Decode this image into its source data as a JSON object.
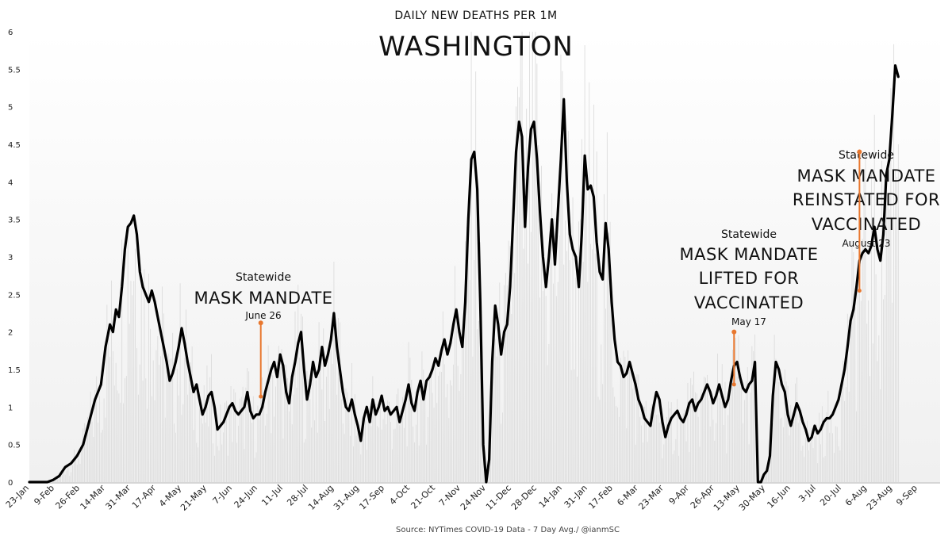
{
  "chart_data": {
    "type": "line",
    "subtitle": "DAILY NEW DEATHS PER 1M",
    "title": "WASHINGTON",
    "source": "Source: NYTimes COVID-19 Data - 7 Day Avg./ @ianmSC",
    "ylim": [
      0,
      6
    ],
    "y_ticks": [
      "0",
      "0.5",
      "1",
      "1.5",
      "2",
      "2.5",
      "3",
      "3.5",
      "4",
      "4.5",
      "5",
      "5.5",
      "6"
    ],
    "x_tick_labels": [
      "23-Jan",
      "9-Feb",
      "26-Feb",
      "14-Mar",
      "31-Mar",
      "17-Apr",
      "4-May",
      "21-May",
      "7-Jun",
      "24-Jun",
      "11-Jul",
      "28-Jul",
      "14-Aug",
      "31-Aug",
      "17-Sep",
      "4-Oct",
      "21-Oct",
      "7-Nov",
      "24-Nov",
      "11-Dec",
      "28-Dec",
      "14-Jan",
      "31-Jan",
      "17-Feb",
      "6-Mar",
      "23-Mar",
      "9-Apr",
      "26-Apr",
      "13-May",
      "30-May",
      "16-Jun",
      "3-Jul",
      "20-Jul",
      "6-Aug",
      "23-Aug",
      "9-Sep"
    ],
    "grid": false,
    "line_color": "#000000",
    "annotation_color": "#e8772e",
    "series": [
      {
        "values": [
          [
            0,
            0
          ],
          [
            8,
            0
          ],
          [
            12,
            0
          ],
          [
            16,
            0.03
          ],
          [
            20,
            0.08
          ],
          [
            24,
            0.2
          ],
          [
            28,
            0.25
          ],
          [
            32,
            0.35
          ],
          [
            36,
            0.5
          ],
          [
            40,
            0.8
          ],
          [
            44,
            1.1
          ],
          [
            48,
            1.3
          ],
          [
            51,
            1.8
          ],
          [
            54,
            2.1
          ],
          [
            56,
            2.0
          ],
          [
            58,
            2.3
          ],
          [
            60,
            2.2
          ],
          [
            62,
            2.6
          ],
          [
            64,
            3.1
          ],
          [
            66,
            3.4
          ],
          [
            68,
            3.45
          ],
          [
            70,
            3.55
          ],
          [
            72,
            3.3
          ],
          [
            74,
            2.8
          ],
          [
            76,
            2.6
          ],
          [
            78,
            2.5
          ],
          [
            80,
            2.4
          ],
          [
            82,
            2.55
          ],
          [
            84,
            2.4
          ],
          [
            86,
            2.2
          ],
          [
            88,
            2.0
          ],
          [
            90,
            1.8
          ],
          [
            92,
            1.6
          ],
          [
            94,
            1.35
          ],
          [
            96,
            1.45
          ],
          [
            98,
            1.6
          ],
          [
            100,
            1.8
          ],
          [
            102,
            2.05
          ],
          [
            104,
            1.85
          ],
          [
            106,
            1.6
          ],
          [
            108,
            1.4
          ],
          [
            110,
            1.2
          ],
          [
            112,
            1.3
          ],
          [
            114,
            1.1
          ],
          [
            116,
            0.9
          ],
          [
            118,
            1.0
          ],
          [
            120,
            1.15
          ],
          [
            122,
            1.2
          ],
          [
            124,
            1.0
          ],
          [
            126,
            0.7
          ],
          [
            128,
            0.75
          ],
          [
            130,
            0.8
          ],
          [
            132,
            0.9
          ],
          [
            134,
            1.0
          ],
          [
            136,
            1.05
          ],
          [
            138,
            0.95
          ],
          [
            140,
            0.9
          ],
          [
            142,
            0.95
          ],
          [
            144,
            1.0
          ],
          [
            146,
            1.2
          ],
          [
            148,
            0.95
          ],
          [
            150,
            0.85
          ],
          [
            152,
            0.9
          ],
          [
            154,
            0.9
          ],
          [
            156,
            1.0
          ],
          [
            158,
            1.2
          ],
          [
            160,
            1.35
          ],
          [
            162,
            1.5
          ],
          [
            164,
            1.6
          ],
          [
            166,
            1.4
          ],
          [
            168,
            1.7
          ],
          [
            170,
            1.55
          ],
          [
            172,
            1.2
          ],
          [
            174,
            1.05
          ],
          [
            176,
            1.4
          ],
          [
            178,
            1.6
          ],
          [
            180,
            1.85
          ],
          [
            182,
            2.0
          ],
          [
            184,
            1.5
          ],
          [
            186,
            1.1
          ],
          [
            188,
            1.3
          ],
          [
            190,
            1.6
          ],
          [
            192,
            1.4
          ],
          [
            194,
            1.5
          ],
          [
            196,
            1.8
          ],
          [
            198,
            1.55
          ],
          [
            200,
            1.7
          ],
          [
            202,
            1.9
          ],
          [
            204,
            2.25
          ],
          [
            206,
            1.8
          ],
          [
            208,
            1.5
          ],
          [
            210,
            1.2
          ],
          [
            212,
            1.0
          ],
          [
            214,
            0.95
          ],
          [
            216,
            1.1
          ],
          [
            218,
            0.9
          ],
          [
            220,
            0.75
          ],
          [
            222,
            0.55
          ],
          [
            224,
            0.85
          ],
          [
            226,
            1.0
          ],
          [
            228,
            0.8
          ],
          [
            230,
            1.1
          ],
          [
            232,
            0.9
          ],
          [
            234,
            1.0
          ],
          [
            236,
            1.15
          ],
          [
            238,
            0.95
          ],
          [
            240,
            1.0
          ],
          [
            242,
            0.9
          ],
          [
            244,
            0.95
          ],
          [
            246,
            1.0
          ],
          [
            248,
            0.8
          ],
          [
            250,
            0.95
          ],
          [
            252,
            1.1
          ],
          [
            254,
            1.3
          ],
          [
            256,
            1.05
          ],
          [
            258,
            0.95
          ],
          [
            260,
            1.2
          ],
          [
            262,
            1.35
          ],
          [
            264,
            1.1
          ],
          [
            266,
            1.35
          ],
          [
            268,
            1.4
          ],
          [
            270,
            1.5
          ],
          [
            272,
            1.65
          ],
          [
            274,
            1.55
          ],
          [
            276,
            1.75
          ],
          [
            278,
            1.9
          ],
          [
            280,
            1.7
          ],
          [
            282,
            1.85
          ],
          [
            284,
            2.1
          ],
          [
            286,
            2.3
          ],
          [
            288,
            2.0
          ],
          [
            290,
            1.8
          ],
          [
            292,
            2.4
          ],
          [
            294,
            3.5
          ],
          [
            296,
            4.3
          ],
          [
            298,
            4.4
          ],
          [
            300,
            3.9
          ],
          [
            302,
            2.4
          ],
          [
            304,
            0.5
          ],
          [
            306,
            0.0
          ],
          [
            308,
            0.3
          ],
          [
            310,
            1.6
          ],
          [
            312,
            2.35
          ],
          [
            314,
            2.1
          ],
          [
            316,
            1.7
          ],
          [
            318,
            2.0
          ],
          [
            320,
            2.1
          ],
          [
            322,
            2.6
          ],
          [
            324,
            3.5
          ],
          [
            326,
            4.4
          ],
          [
            328,
            4.8
          ],
          [
            330,
            4.6
          ],
          [
            332,
            3.4
          ],
          [
            334,
            4.2
          ],
          [
            336,
            4.7
          ],
          [
            338,
            4.8
          ],
          [
            340,
            4.3
          ],
          [
            342,
            3.6
          ],
          [
            344,
            3.0
          ],
          [
            346,
            2.6
          ],
          [
            348,
            3.0
          ],
          [
            350,
            3.5
          ],
          [
            352,
            2.9
          ],
          [
            354,
            3.6
          ],
          [
            356,
            4.3
          ],
          [
            358,
            5.1
          ],
          [
            360,
            4.0
          ],
          [
            362,
            3.3
          ],
          [
            364,
            3.1
          ],
          [
            366,
            3.0
          ],
          [
            368,
            2.6
          ],
          [
            370,
            3.3
          ],
          [
            372,
            4.35
          ],
          [
            374,
            3.9
          ],
          [
            376,
            3.95
          ],
          [
            378,
            3.8
          ],
          [
            380,
            3.2
          ],
          [
            382,
            2.8
          ],
          [
            384,
            2.7
          ],
          [
            386,
            3.45
          ],
          [
            388,
            3.1
          ],
          [
            390,
            2.4
          ],
          [
            392,
            1.9
          ],
          [
            394,
            1.6
          ],
          [
            396,
            1.55
          ],
          [
            398,
            1.4
          ],
          [
            400,
            1.45
          ],
          [
            402,
            1.6
          ],
          [
            404,
            1.45
          ],
          [
            406,
            1.3
          ],
          [
            408,
            1.1
          ],
          [
            410,
            1.0
          ],
          [
            412,
            0.85
          ],
          [
            414,
            0.8
          ],
          [
            416,
            0.75
          ],
          [
            418,
            1.0
          ],
          [
            420,
            1.2
          ],
          [
            422,
            1.1
          ],
          [
            424,
            0.8
          ],
          [
            426,
            0.6
          ],
          [
            428,
            0.75
          ],
          [
            430,
            0.85
          ],
          [
            432,
            0.9
          ],
          [
            434,
            0.95
          ],
          [
            436,
            0.85
          ],
          [
            438,
            0.8
          ],
          [
            440,
            0.9
          ],
          [
            442,
            1.05
          ],
          [
            444,
            1.1
          ],
          [
            446,
            0.95
          ],
          [
            448,
            1.05
          ],
          [
            450,
            1.1
          ],
          [
            452,
            1.2
          ],
          [
            454,
            1.3
          ],
          [
            456,
            1.2
          ],
          [
            458,
            1.05
          ],
          [
            460,
            1.15
          ],
          [
            462,
            1.3
          ],
          [
            464,
            1.15
          ],
          [
            466,
            1.0
          ],
          [
            468,
            1.1
          ],
          [
            470,
            1.35
          ],
          [
            472,
            1.55
          ],
          [
            474,
            1.6
          ],
          [
            476,
            1.4
          ],
          [
            478,
            1.25
          ],
          [
            480,
            1.2
          ],
          [
            482,
            1.3
          ],
          [
            484,
            1.35
          ],
          [
            486,
            1.6
          ],
          [
            488,
            0.0
          ],
          [
            490,
            0.0
          ],
          [
            492,
            0.1
          ],
          [
            494,
            0.15
          ],
          [
            496,
            0.35
          ],
          [
            498,
            1.15
          ],
          [
            500,
            1.6
          ],
          [
            502,
            1.5
          ],
          [
            504,
            1.3
          ],
          [
            506,
            1.2
          ],
          [
            508,
            0.9
          ],
          [
            510,
            0.75
          ],
          [
            512,
            0.9
          ],
          [
            514,
            1.05
          ],
          [
            516,
            0.95
          ],
          [
            518,
            0.8
          ],
          [
            520,
            0.7
          ],
          [
            522,
            0.55
          ],
          [
            524,
            0.6
          ],
          [
            526,
            0.75
          ],
          [
            528,
            0.65
          ],
          [
            530,
            0.7
          ],
          [
            532,
            0.8
          ],
          [
            534,
            0.85
          ],
          [
            536,
            0.85
          ],
          [
            538,
            0.9
          ],
          [
            540,
            1.0
          ],
          [
            542,
            1.1
          ],
          [
            544,
            1.3
          ],
          [
            546,
            1.5
          ],
          [
            548,
            1.8
          ],
          [
            550,
            2.15
          ],
          [
            552,
            2.3
          ],
          [
            554,
            2.6
          ],
          [
            556,
            2.95
          ],
          [
            558,
            3.05
          ],
          [
            560,
            3.1
          ],
          [
            562,
            3.05
          ],
          [
            564,
            3.15
          ],
          [
            566,
            3.4
          ],
          [
            568,
            3.1
          ],
          [
            570,
            2.95
          ],
          [
            572,
            3.3
          ],
          [
            574,
            4.1
          ],
          [
            576,
            4.3
          ],
          [
            578,
            4.9
          ],
          [
            580,
            5.55
          ],
          [
            582,
            5.4
          ]
        ]
      }
    ],
    "annotations": [
      {
        "pre": "Statewide",
        "main": [
          "MASK MANDATE"
        ],
        "date": "June 26",
        "x": 155,
        "y_top": 2.12,
        "y_bottom": 1.14
      },
      {
        "pre": "Statewide",
        "main": [
          "MASK MANDATE",
          "LIFTED FOR",
          "VACCINATED"
        ],
        "date": "May 17",
        "x": 472,
        "y_top": 2.0,
        "y_bottom": 1.3
      },
      {
        "pre": "Statewide",
        "main": [
          "MASK MANDATE",
          "REINSTATED FOR",
          "VACCINATED"
        ],
        "date": "August 23",
        "x": 556,
        "y_top": 4.4,
        "y_bottom": 2.55
      }
    ]
  }
}
